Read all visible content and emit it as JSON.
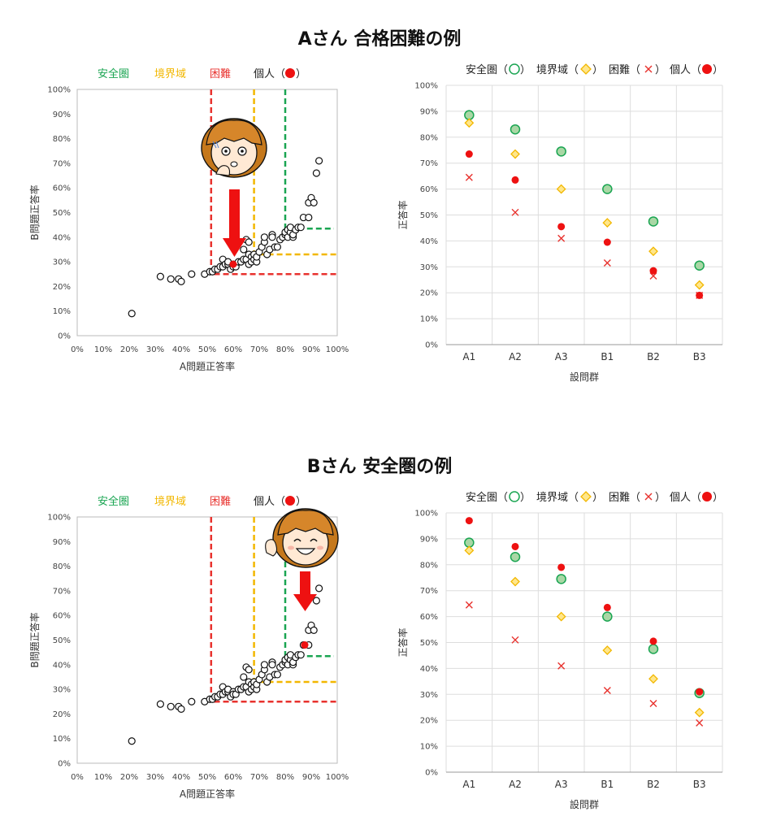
{
  "sections": [
    {
      "title": "Aさん 合格困難の例"
    },
    {
      "title": "Bさん 安全圏の例"
    }
  ],
  "scatter_legend": {
    "safe": "安全圏",
    "border": "境界域",
    "hard": "困難",
    "personal": "個人（",
    "personal_close": "）"
  },
  "group_legend": {
    "safe": "安全圏（",
    "border": "境界域（",
    "hard": "困難（",
    "personal": "個人（",
    "close": "）"
  },
  "colors": {
    "safe": "#1aa552",
    "border": "#f2b700",
    "hard": "#e8322e",
    "personal": "#ee1111",
    "safe_fill": "#a9d7a5",
    "border_fill": "#ffe68a",
    "arrow": "#ee1111"
  },
  "chart_data": [
    {
      "type": "scatter",
      "xlabel": "A問題正答率",
      "ylabel": "B問題正答率",
      "xlim": [
        0,
        100
      ],
      "ylim": [
        0,
        100
      ],
      "x_ticks": [
        "0%",
        "10%",
        "20%",
        "30%",
        "40%",
        "50%",
        "60%",
        "70%",
        "80%",
        "90%",
        "100%"
      ],
      "y_ticks": [
        "0%",
        "10%",
        "20%",
        "30%",
        "40%",
        "50%",
        "60%",
        "70%",
        "80%",
        "90%",
        "100%"
      ],
      "thresholds": {
        "hard_x": 51.5,
        "hard_y": 25,
        "border_x": 68,
        "border_y": 33,
        "safe_x": 80,
        "safe_y": 43.5
      },
      "students": [
        [
          21,
          9
        ],
        [
          32,
          24
        ],
        [
          36,
          23
        ],
        [
          39,
          23
        ],
        [
          40,
          22
        ],
        [
          44,
          25
        ],
        [
          49,
          25
        ],
        [
          51,
          26
        ],
        [
          52,
          26
        ],
        [
          53,
          27
        ],
        [
          54,
          27
        ],
        [
          55,
          28
        ],
        [
          56,
          28
        ],
        [
          56,
          31
        ],
        [
          57,
          29
        ],
        [
          58,
          29
        ],
        [
          58,
          30
        ],
        [
          59,
          27
        ],
        [
          60,
          29
        ],
        [
          60,
          28
        ],
        [
          61,
          28
        ],
        [
          62,
          30
        ],
        [
          63,
          30
        ],
        [
          64,
          31
        ],
        [
          64,
          35
        ],
        [
          65,
          31
        ],
        [
          65,
          39
        ],
        [
          66,
          33
        ],
        [
          66,
          38
        ],
        [
          66,
          29
        ],
        [
          67,
          32
        ],
        [
          67,
          30
        ],
        [
          68,
          31
        ],
        [
          68,
          33
        ],
        [
          69,
          30
        ],
        [
          69,
          32
        ],
        [
          70,
          34
        ],
        [
          71,
          36
        ],
        [
          72,
          38
        ],
        [
          72,
          40
        ],
        [
          73,
          33
        ],
        [
          74,
          35
        ],
        [
          75,
          41
        ],
        [
          75,
          40
        ],
        [
          76,
          36
        ],
        [
          77,
          36
        ],
        [
          78,
          39
        ],
        [
          79,
          40
        ],
        [
          80,
          41
        ],
        [
          80,
          42
        ],
        [
          81,
          40
        ],
        [
          81,
          43
        ],
        [
          82,
          42
        ],
        [
          82,
          44
        ],
        [
          83,
          40
        ],
        [
          83,
          41
        ],
        [
          84,
          43
        ],
        [
          85,
          44
        ],
        [
          86,
          44
        ],
        [
          87,
          48
        ],
        [
          89,
          48
        ],
        [
          89,
          54
        ],
        [
          90,
          56
        ],
        [
          91,
          54
        ],
        [
          92,
          66
        ],
        [
          93,
          71
        ]
      ],
      "personal": [
        60,
        29
      ]
    },
    {
      "type": "scatter",
      "categories": [
        "A1",
        "A2",
        "A3",
        "B1",
        "B2",
        "B3"
      ],
      "xlabel": "設問群",
      "ylabel": "正答率",
      "ylim": [
        0,
        100
      ],
      "y_ticks": [
        "0%",
        "10%",
        "20%",
        "30%",
        "40%",
        "50%",
        "60%",
        "70%",
        "80%",
        "90%",
        "100%"
      ],
      "series": [
        {
          "name": "安全圏",
          "values": [
            88.5,
            83,
            74.5,
            60,
            47.5,
            30.5
          ]
        },
        {
          "name": "境界域",
          "values": [
            85.5,
            73.5,
            60,
            47,
            36,
            23
          ]
        },
        {
          "name": "困難",
          "values": [
            64.5,
            51,
            41,
            31.5,
            26.5,
            19
          ]
        },
        {
          "name": "個人",
          "values": [
            73.5,
            63.5,
            45.5,
            39.5,
            28.5,
            19
          ]
        }
      ]
    },
    {
      "type": "scatter",
      "xlabel": "A問題正答率",
      "ylabel": "B問題正答率",
      "xlim": [
        0,
        100
      ],
      "ylim": [
        0,
        100
      ],
      "x_ticks": [
        "0%",
        "10%",
        "20%",
        "30%",
        "40%",
        "50%",
        "60%",
        "70%",
        "80%",
        "90%",
        "100%"
      ],
      "y_ticks": [
        "0%",
        "10%",
        "20%",
        "30%",
        "40%",
        "50%",
        "60%",
        "70%",
        "80%",
        "90%",
        "100%"
      ],
      "thresholds": {
        "hard_x": 51.5,
        "hard_y": 25,
        "border_x": 68,
        "border_y": 33,
        "safe_x": 80,
        "safe_y": 43.5
      },
      "students": [
        [
          21,
          9
        ],
        [
          32,
          24
        ],
        [
          36,
          23
        ],
        [
          39,
          23
        ],
        [
          40,
          22
        ],
        [
          44,
          25
        ],
        [
          49,
          25
        ],
        [
          51,
          26
        ],
        [
          52,
          26
        ],
        [
          53,
          27
        ],
        [
          54,
          27
        ],
        [
          55,
          28
        ],
        [
          56,
          28
        ],
        [
          56,
          31
        ],
        [
          57,
          29
        ],
        [
          58,
          29
        ],
        [
          58,
          30
        ],
        [
          59,
          27
        ],
        [
          60,
          29
        ],
        [
          60,
          28
        ],
        [
          61,
          28
        ],
        [
          62,
          30
        ],
        [
          63,
          30
        ],
        [
          64,
          31
        ],
        [
          64,
          35
        ],
        [
          65,
          31
        ],
        [
          65,
          39
        ],
        [
          66,
          33
        ],
        [
          66,
          38
        ],
        [
          66,
          29
        ],
        [
          67,
          32
        ],
        [
          67,
          30
        ],
        [
          68,
          31
        ],
        [
          68,
          33
        ],
        [
          69,
          30
        ],
        [
          69,
          32
        ],
        [
          70,
          34
        ],
        [
          71,
          36
        ],
        [
          72,
          38
        ],
        [
          72,
          40
        ],
        [
          73,
          33
        ],
        [
          74,
          35
        ],
        [
          75,
          41
        ],
        [
          75,
          40
        ],
        [
          76,
          36
        ],
        [
          77,
          36
        ],
        [
          78,
          39
        ],
        [
          79,
          40
        ],
        [
          80,
          41
        ],
        [
          80,
          42
        ],
        [
          81,
          40
        ],
        [
          81,
          43
        ],
        [
          82,
          42
        ],
        [
          82,
          44
        ],
        [
          83,
          40
        ],
        [
          83,
          41
        ],
        [
          84,
          43
        ],
        [
          85,
          44
        ],
        [
          86,
          44
        ],
        [
          87,
          48
        ],
        [
          89,
          48
        ],
        [
          89,
          54
        ],
        [
          90,
          56
        ],
        [
          91,
          54
        ],
        [
          92,
          66
        ],
        [
          93,
          71
        ]
      ],
      "personal": [
        87.5,
        48
      ]
    },
    {
      "type": "scatter",
      "categories": [
        "A1",
        "A2",
        "A3",
        "B1",
        "B2",
        "B3"
      ],
      "xlabel": "設問群",
      "ylabel": "正答率",
      "ylim": [
        0,
        100
      ],
      "y_ticks": [
        "0%",
        "10%",
        "20%",
        "30%",
        "40%",
        "50%",
        "60%",
        "70%",
        "80%",
        "90%",
        "100%"
      ],
      "series": [
        {
          "name": "安全圏",
          "values": [
            88.5,
            83,
            74.5,
            60,
            47.5,
            30.5
          ]
        },
        {
          "name": "境界域",
          "values": [
            85.5,
            73.5,
            60,
            47,
            36,
            23
          ]
        },
        {
          "name": "困難",
          "values": [
            64.5,
            51,
            41,
            31.5,
            26.5,
            19
          ]
        },
        {
          "name": "個人",
          "values": [
            97,
            87,
            79,
            63.5,
            50.5,
            31
          ]
        }
      ]
    }
  ]
}
